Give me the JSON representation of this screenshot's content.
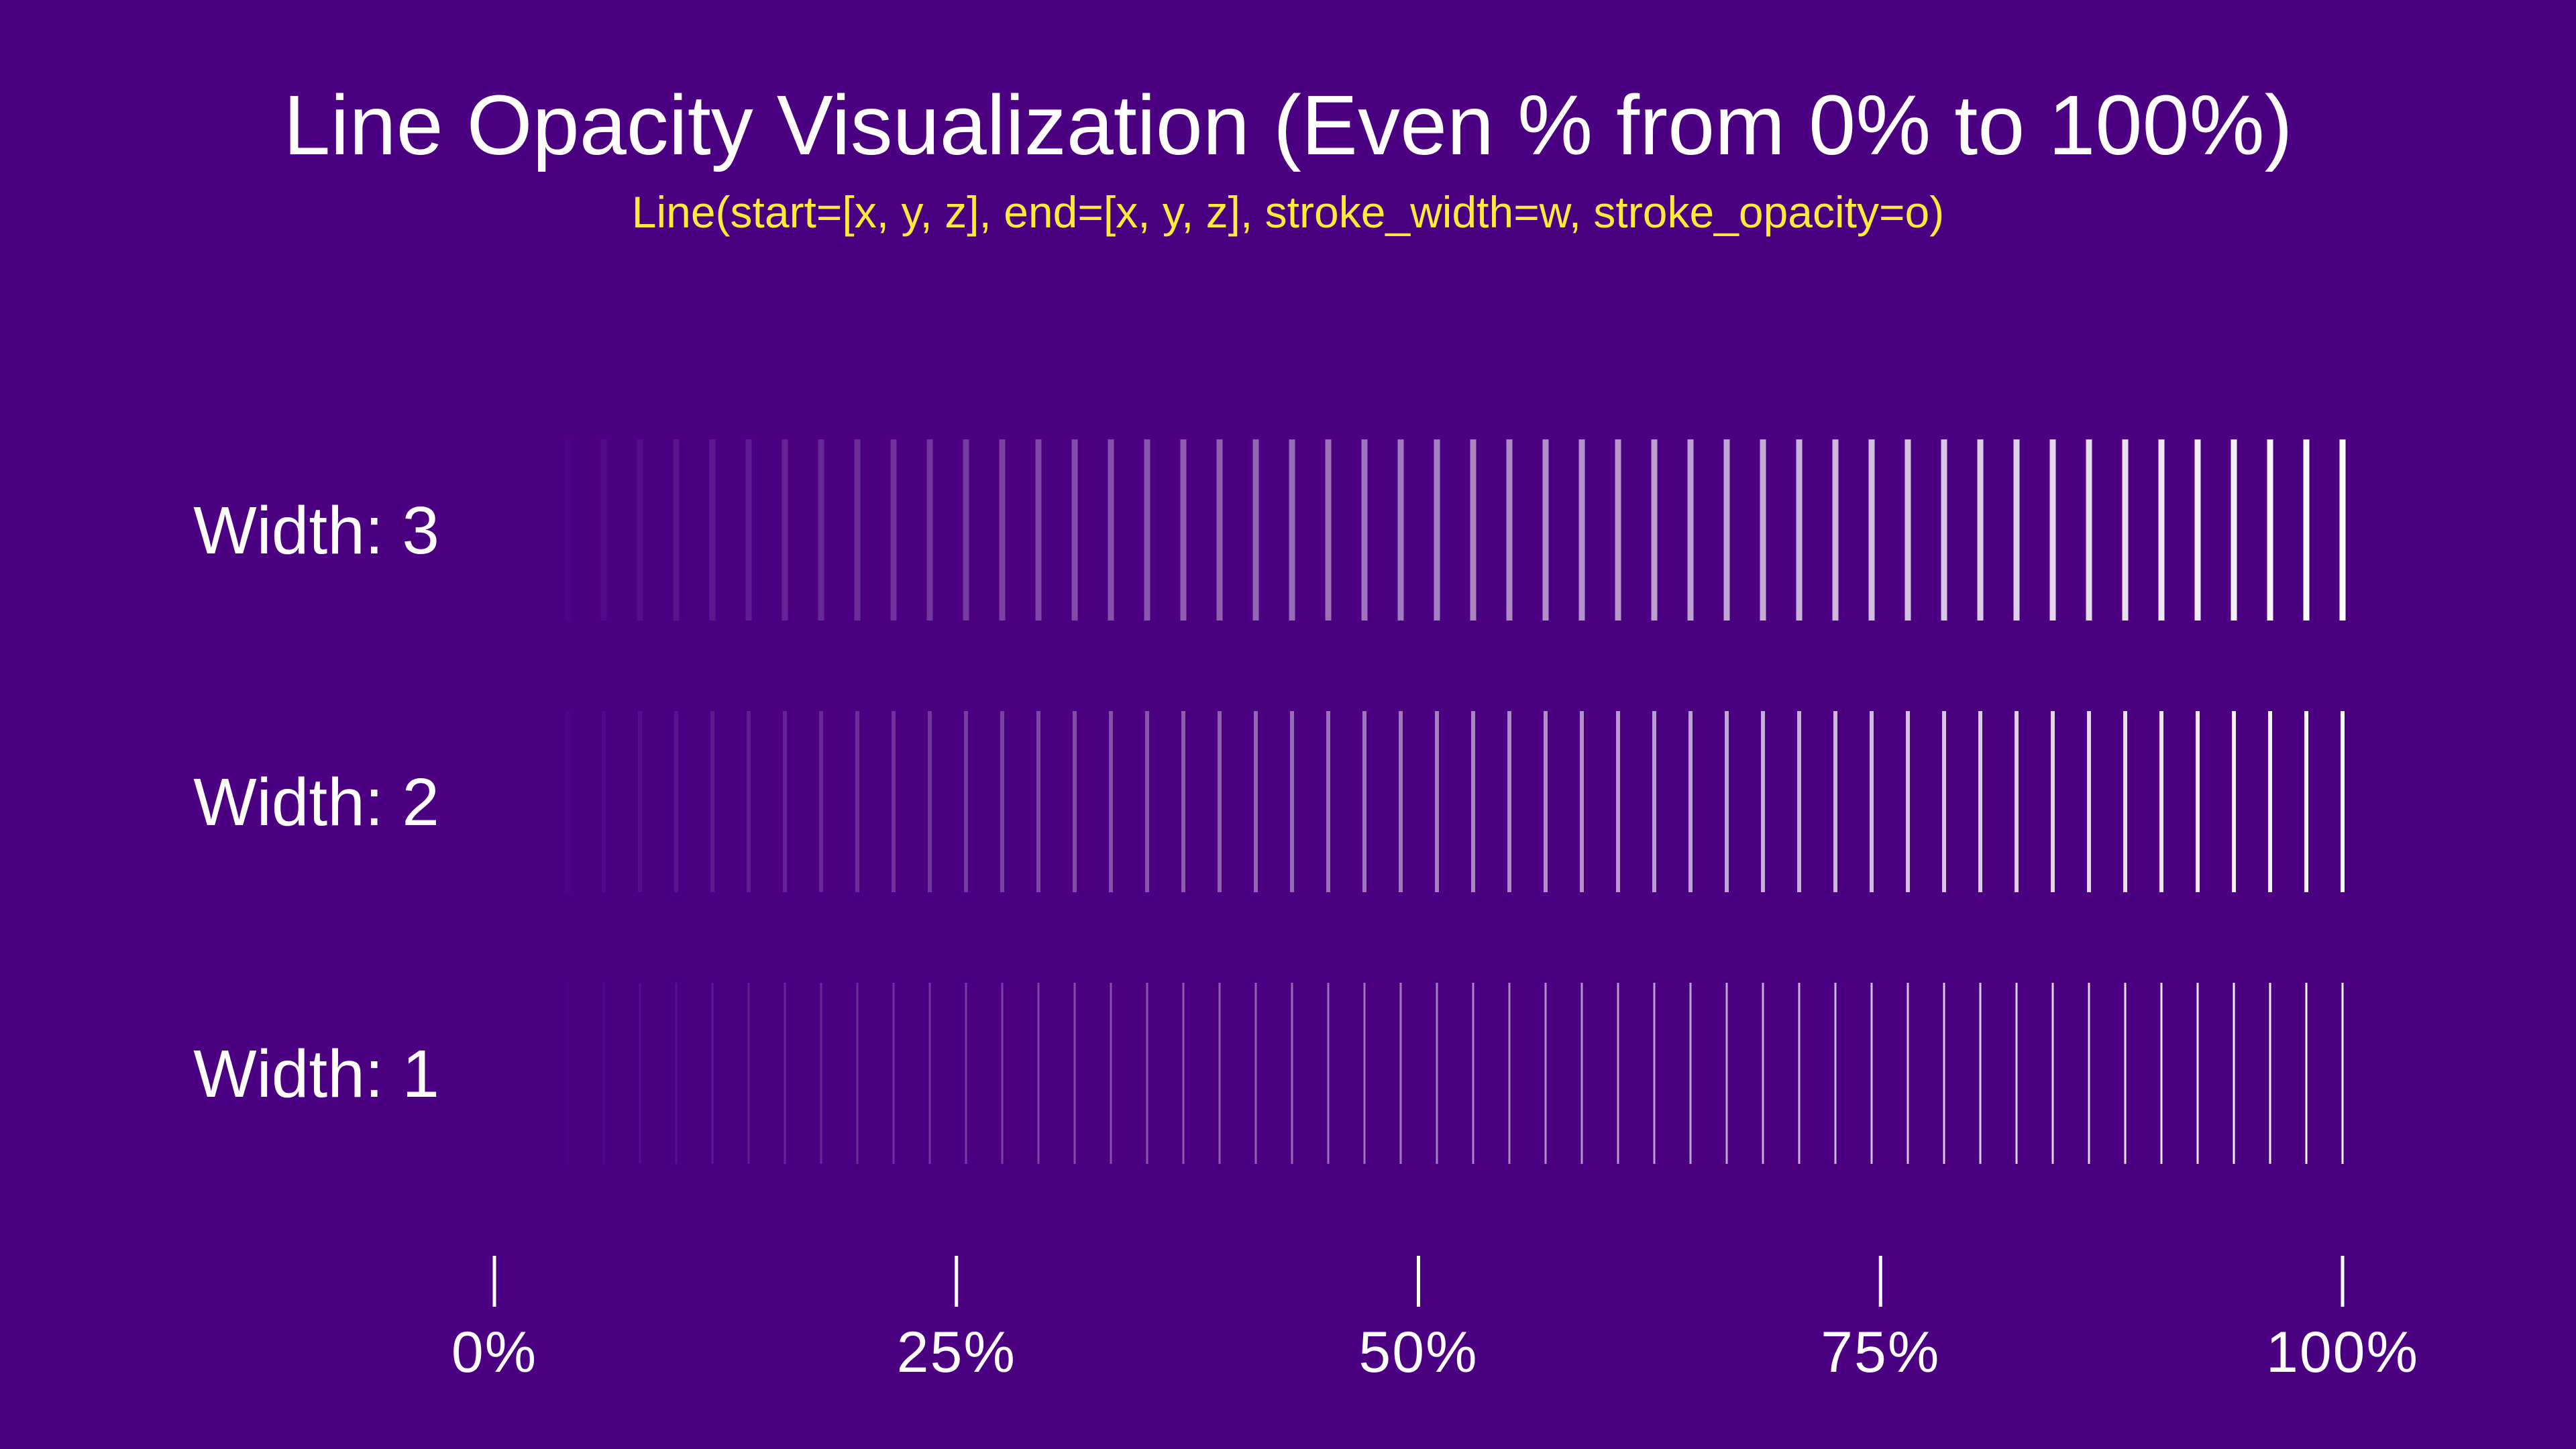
{
  "title": "Line Opacity Visualization (Even % from 0% to 100%)",
  "subtitle": "Line(start=[x,  y, z],  end=[x,  y, z],  stroke_width=w, stroke_opacity=o)",
  "colors": {
    "background": "#4b0082",
    "line": "#ffffff",
    "text": "#ffffff",
    "subtitle": "#ffeb3b"
  },
  "rows": [
    {
      "label": "Width: 3",
      "stroke_width": 3
    },
    {
      "label": "Width: 2",
      "stroke_width": 2
    },
    {
      "label": "Width: 1",
      "stroke_width": 1
    }
  ],
  "opacity_percent_values": [
    0,
    2,
    4,
    6,
    8,
    10,
    12,
    14,
    16,
    18,
    20,
    22,
    24,
    26,
    28,
    30,
    32,
    34,
    36,
    38,
    40,
    42,
    44,
    46,
    48,
    50,
    52,
    54,
    56,
    58,
    60,
    62,
    64,
    66,
    68,
    70,
    72,
    74,
    76,
    78,
    80,
    82,
    84,
    86,
    88,
    90,
    92,
    94,
    96,
    98,
    100
  ],
  "axis": {
    "ticks": [
      {
        "label": "0%",
        "value": 0
      },
      {
        "label": "25%",
        "value": 25
      },
      {
        "label": "50%",
        "value": 50
      },
      {
        "label": "75%",
        "value": 75
      },
      {
        "label": "100%",
        "value": 100
      }
    ]
  }
}
